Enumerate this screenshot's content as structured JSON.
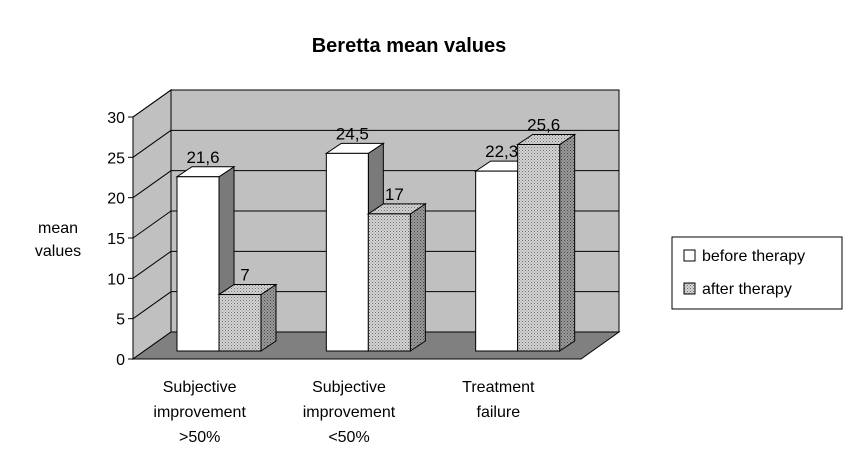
{
  "chart_data": {
    "type": "bar",
    "title": "Beretta mean values",
    "ylabel": [
      "mean",
      "values"
    ],
    "xlabel": "",
    "ylim": [
      0,
      30
    ],
    "yticks": [
      0,
      5,
      10,
      15,
      20,
      25,
      30
    ],
    "grid": true,
    "legend_position": "right",
    "categories": [
      [
        "Subjective",
        "improvement",
        ">50%"
      ],
      [
        "Subjective",
        "improvement",
        "<50%"
      ],
      [
        "Treatment",
        "failure"
      ]
    ],
    "series": [
      {
        "name": "before therapy",
        "values": [
          21.6,
          24.5,
          22.3
        ],
        "labels": [
          "21,6",
          "24,5",
          "22,3"
        ],
        "color": "#ffffff"
      },
      {
        "name": "after therapy",
        "values": [
          7,
          17,
          25.6
        ],
        "labels": [
          "7",
          "17",
          "25,6"
        ],
        "color": "#c8c8c8"
      }
    ],
    "wall_color": "#c0c0c0",
    "floor_color": "#808080"
  }
}
